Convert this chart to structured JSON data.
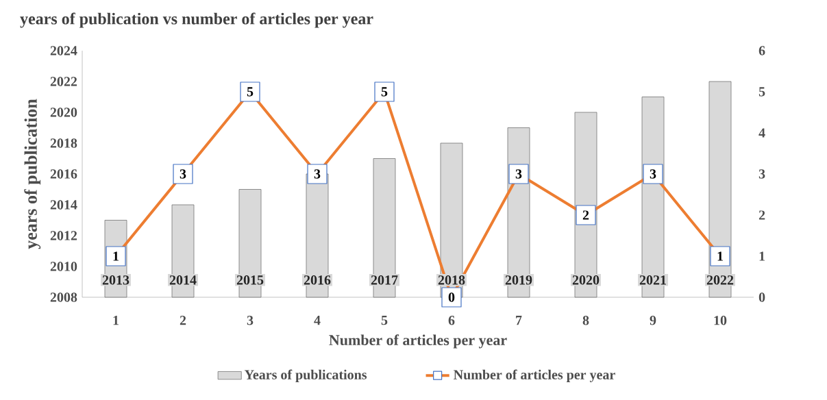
{
  "chart_data": {
    "type": "bar",
    "title": "years of publication vs number of articles per year",
    "xlabel": "Number of articles per year",
    "ylabel": "years of publication",
    "categories": [
      "1",
      "2",
      "3",
      "4",
      "5",
      "6",
      "7",
      "8",
      "9",
      "10"
    ],
    "series": [
      {
        "name": "Years of publications",
        "color": "#d9d9d9",
        "values": [
          2013,
          2014,
          2015,
          2016,
          2017,
          2018,
          2019,
          2020,
          2021,
          2022
        ]
      },
      {
        "name": "Number of articles per year",
        "type": "line",
        "axis": "y2",
        "color": "#ed7d31",
        "values": [
          1,
          3,
          5,
          3,
          5,
          0,
          3,
          2,
          3,
          1
        ]
      }
    ],
    "ylim": [
      2008,
      2024
    ],
    "yticks": [
      2008,
      2010,
      2012,
      2014,
      2016,
      2018,
      2020,
      2022,
      2024
    ],
    "y2lim": [
      0,
      6
    ],
    "y2ticks": [
      0,
      1,
      2,
      3,
      4,
      5,
      6
    ],
    "data_labels": true,
    "legend": "bottom",
    "grid": false,
    "marker": "square",
    "line_style": "solid"
  }
}
